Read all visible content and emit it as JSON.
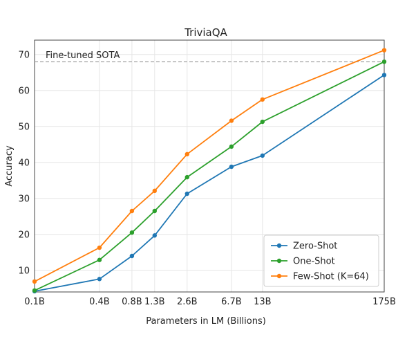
{
  "chart_data": {
    "type": "line",
    "title": "TriviaQA",
    "xlabel": "Parameters in LM (Billions)",
    "ylabel": "Accuracy",
    "x_scale": "log",
    "x": [
      0.1,
      0.4,
      0.8,
      1.3,
      2.6,
      6.7,
      13,
      175
    ],
    "x_tick_labels": [
      "0.1B",
      "0.4B",
      "0.8B",
      "1.3B",
      "2.6B",
      "6.7B",
      "13B",
      "175B"
    ],
    "ylim": [
      4,
      74
    ],
    "y_ticks": [
      10,
      20,
      30,
      40,
      50,
      60,
      70
    ],
    "grid": true,
    "legend_position": "bottom-right",
    "series": [
      {
        "name": "Zero-Shot",
        "color": "#1f77b4",
        "values": [
          4.2,
          7.6,
          14.0,
          19.7,
          31.3,
          38.8,
          41.9,
          64.3
        ]
      },
      {
        "name": "One-Shot",
        "color": "#2ca02c",
        "values": [
          4.4,
          12.9,
          20.5,
          26.5,
          35.9,
          44.4,
          51.3,
          68.0
        ]
      },
      {
        "name": "Few-Shot (K=64)",
        "color": "#ff7f0e",
        "values": [
          6.9,
          16.3,
          26.5,
          32.1,
          42.3,
          51.6,
          57.5,
          71.2
        ]
      }
    ],
    "annotations": [
      {
        "label": "Fine-tuned SOTA",
        "y": 68.0,
        "style": "dashed",
        "color": "#aaaaaa"
      }
    ]
  }
}
